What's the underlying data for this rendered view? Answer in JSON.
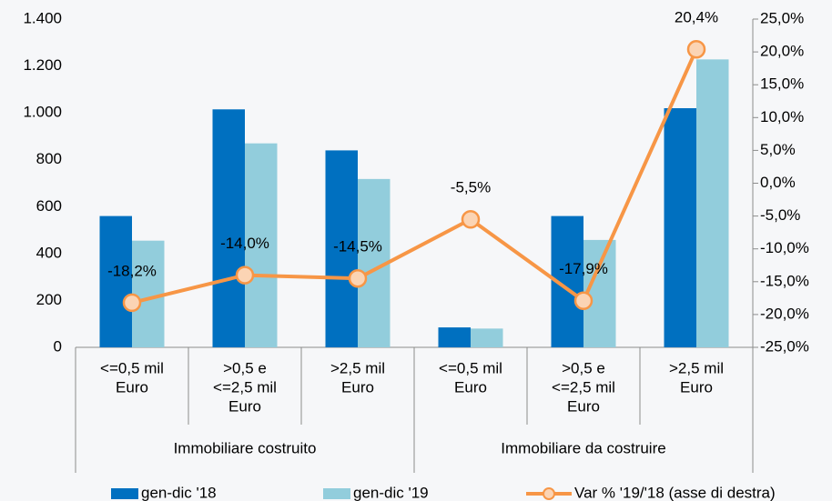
{
  "chart_data": {
    "type": "bar-line",
    "categories": [
      [
        "<=0,5 mil",
        "Euro"
      ],
      [
        ">0,5 e",
        "<=2,5 mil",
        "Euro"
      ],
      [
        ">2,5 mil",
        "Euro"
      ],
      [
        "<=0,5 mil",
        "Euro"
      ],
      [
        ">0,5 e",
        "<=2,5 mil",
        "Euro"
      ],
      [
        ">2,5 mil",
        "Euro"
      ]
    ],
    "groups": [
      "Immobiliare costruito",
      "Immobiliare da costruire"
    ],
    "series": [
      {
        "name": "gen-dic '18",
        "type": "bar",
        "color": "#0070c0",
        "values": [
          560,
          1015,
          840,
          85,
          560,
          1020
        ]
      },
      {
        "name": "gen-dic '19",
        "type": "bar",
        "color": "#92cddc",
        "values": [
          455,
          870,
          718,
          80,
          458,
          1228
        ]
      },
      {
        "name": "Var % '19/'18 (asse di destra)",
        "type": "line",
        "axis": "y2",
        "color": "#f79646",
        "marker_fill": "#fbd4b4",
        "values": [
          -18.2,
          -14.0,
          -14.5,
          -5.5,
          -17.9,
          20.4
        ],
        "value_labels": [
          "-18,2%",
          "-14,0%",
          "-14,5%",
          "-5,5%",
          "-17,9%",
          "20,4%"
        ]
      }
    ],
    "ylim": [
      0,
      1400
    ],
    "yticks": [
      0,
      200,
      400,
      600,
      800,
      {
        "value": 1000,
        "label": "1.000"
      },
      {
        "value": 1200,
        "label": "1.200"
      },
      {
        "value": 1400,
        "label": "1.400"
      }
    ],
    "y2lim": [
      -25,
      25
    ],
    "y2ticks": [
      {
        "value": -25,
        "label": "-25,0%"
      },
      {
        "value": -20,
        "label": "-20,0%"
      },
      {
        "value": -15,
        "label": "-15,0%"
      },
      {
        "value": -10,
        "label": "-10,0%"
      },
      {
        "value": -5,
        "label": "-5,0%"
      },
      {
        "value": 0,
        "label": "0,0%"
      },
      {
        "value": 5,
        "label": "5,0%"
      },
      {
        "value": 10,
        "label": "10,0%"
      },
      {
        "value": 15,
        "label": "15,0%"
      },
      {
        "value": 20,
        "label": "20,0%"
      },
      {
        "value": 25,
        "label": "25,0%"
      }
    ],
    "legend": "bottom"
  }
}
